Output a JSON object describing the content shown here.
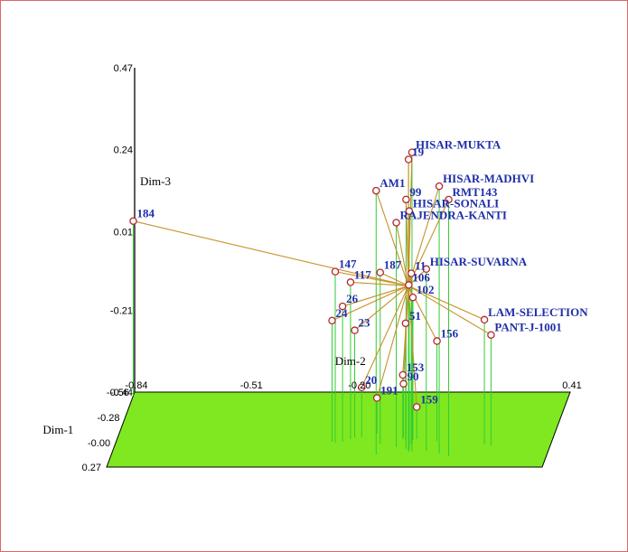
{
  "chart_data": {
    "type": "scatter",
    "subtype": "3d-biplot",
    "axes": {
      "x": {
        "label": "Dim-2",
        "ticks": [
          "-0.84",
          "-0.51",
          "-0.20",
          "0.41"
        ]
      },
      "y": {
        "label": "Dim-1",
        "ticks": [
          "-0.56",
          "-0.28",
          "-0.00",
          "0.27"
        ]
      },
      "z": {
        "label": "Dim-3",
        "ticks": [
          "-0.44",
          "-0.21",
          "0.01",
          "0.24",
          "0.47"
        ]
      }
    },
    "colors": {
      "floor": "#7fe820",
      "drop_line": "#33cc33",
      "vector": "#c8912a",
      "point_edge": "#b4282e",
      "label": "#1f2fa8"
    },
    "points": [
      {
        "label": "HISAR-MUKTA",
        "x": 0.02,
        "y": 0.1,
        "z": 0.4
      },
      {
        "label": "19",
        "x": 0.01,
        "y": 0.1,
        "z": 0.38
      },
      {
        "label": "HISAR-MADHVI",
        "x": 0.1,
        "y": 0.12,
        "z": 0.31
      },
      {
        "label": "RMT143",
        "x": 0.13,
        "y": 0.15,
        "z": 0.28
      },
      {
        "label": "AM1",
        "x": -0.08,
        "y": 0.13,
        "z": 0.3
      },
      {
        "label": "99",
        "x": 0.0,
        "y": 0.07,
        "z": 0.26
      },
      {
        "label": "HISAR-SONALI",
        "x": 0.01,
        "y": 0.08,
        "z": 0.23
      },
      {
        "label": "RAJENDRA-KANTI",
        "x": -0.03,
        "y": 0.05,
        "z": 0.19
      },
      {
        "label": "HISAR-SUVARNA",
        "x": 0.06,
        "y": 0.09,
        "z": 0.07
      },
      {
        "label": "184",
        "x": -0.84,
        "y": -0.52,
        "z": 0.05
      },
      {
        "label": "147",
        "x": -0.21,
        "y": 0.0,
        "z": 0.04
      },
      {
        "label": "117",
        "x": -0.17,
        "y": -0.04,
        "z": 0.0
      },
      {
        "label": "187",
        "x": -0.08,
        "y": 0.01,
        "z": 0.04
      },
      {
        "label": "11",
        "x": 0.01,
        "y": 0.02,
        "z": 0.04
      },
      {
        "label": "106",
        "x": 0.0,
        "y": -0.01,
        "z": 0.0
      },
      {
        "label": "102",
        "x": 0.01,
        "y": -0.03,
        "z": -0.04
      },
      {
        "label": "26",
        "x": -0.19,
        "y": -0.01,
        "z": -0.06
      },
      {
        "label": "24",
        "x": -0.22,
        "y": -0.01,
        "z": -0.1
      },
      {
        "label": "LAM-SELECTION",
        "x": 0.22,
        "y": 0.02,
        "z": -0.09
      },
      {
        "label": "PANT-J-1001",
        "x": 0.24,
        "y": 0.03,
        "z": -0.13
      },
      {
        "label": "51",
        "x": -0.01,
        "y": -0.02,
        "z": -0.11
      },
      {
        "label": "23",
        "x": -0.16,
        "y": -0.06,
        "z": -0.14
      },
      {
        "label": "156",
        "x": 0.08,
        "y": -0.02,
        "z": -0.16
      },
      {
        "label": "153",
        "x": -0.02,
        "y": -0.04,
        "z": -0.26
      },
      {
        "label": "90",
        "x": -0.02,
        "y": -0.06,
        "z": -0.29
      },
      {
        "label": "159",
        "x": 0.02,
        "y": -0.04,
        "z": -0.35
      },
      {
        "label": "191",
        "x": -0.1,
        "y": -0.1,
        "z": -0.34
      },
      {
        "label": "20",
        "x": -0.14,
        "y": -0.06,
        "z": -0.3
      }
    ]
  }
}
